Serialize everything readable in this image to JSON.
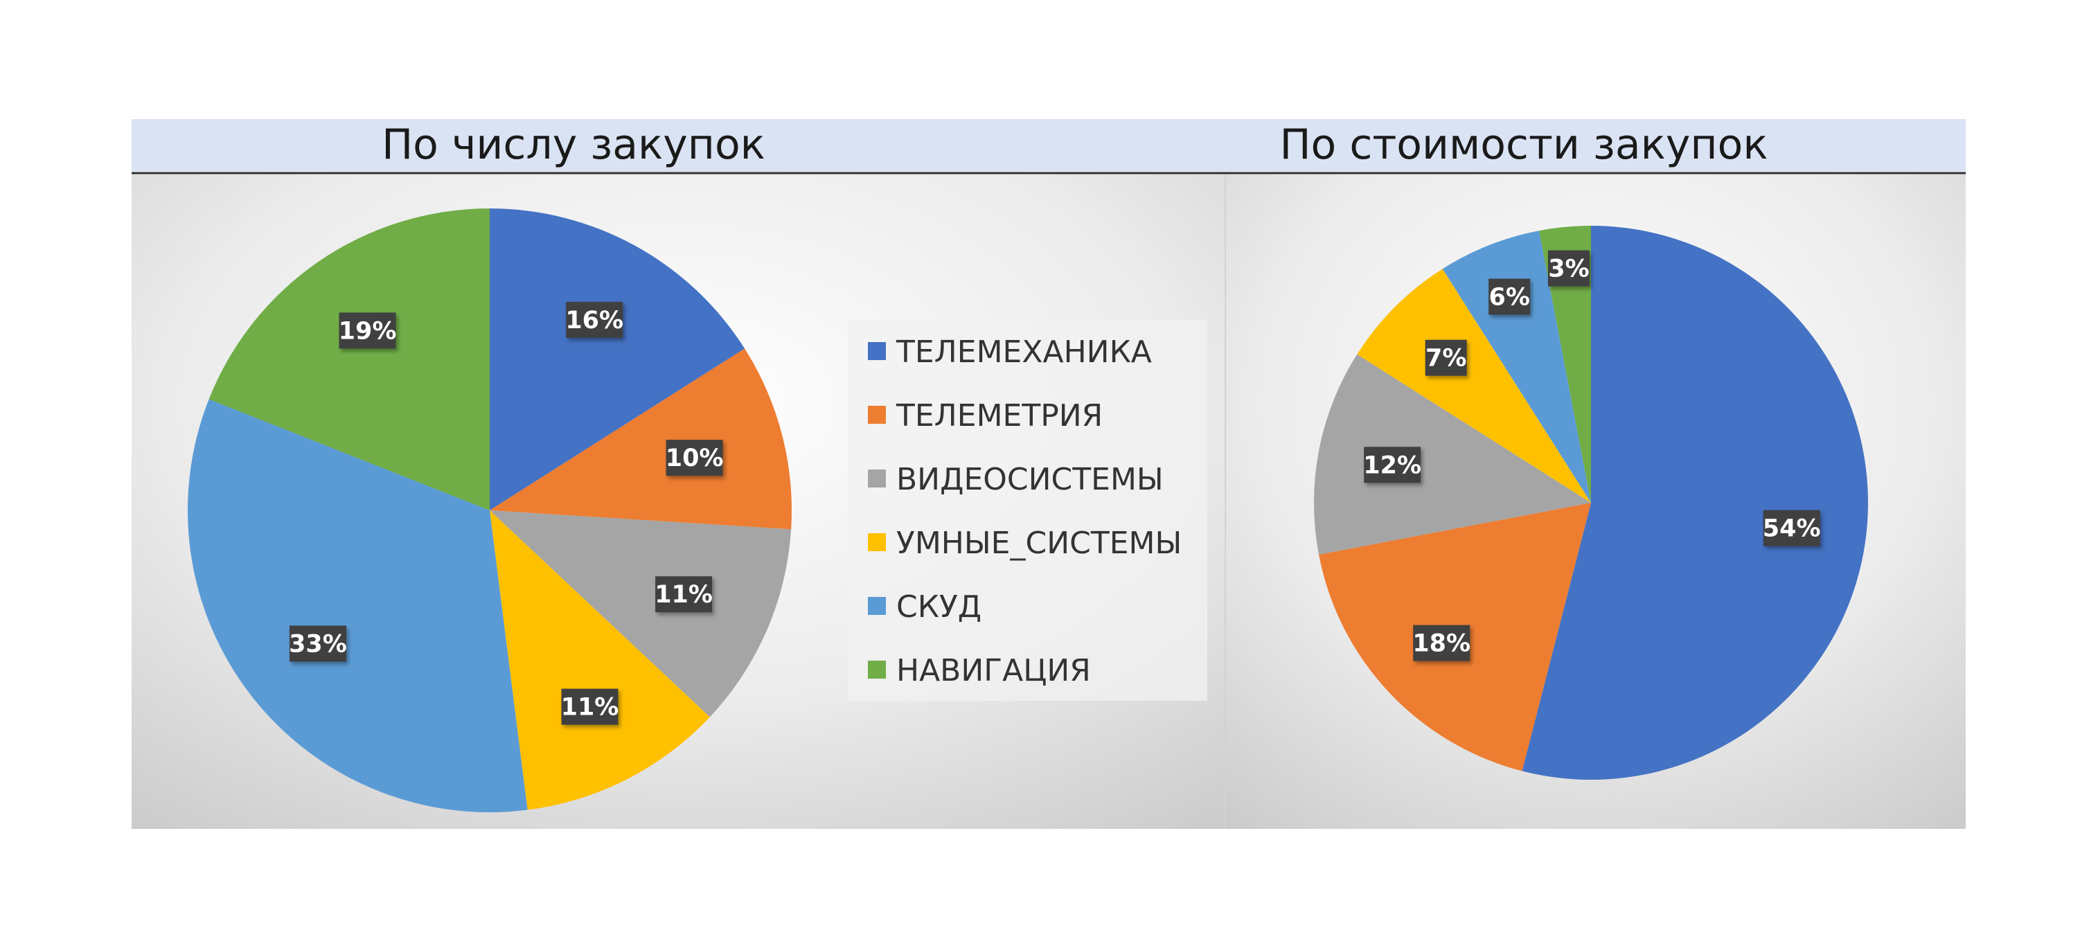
{
  "colors": {
    "header_band": "#dae3f3",
    "header_line": "#2f2f2f",
    "label_box": "#404040"
  },
  "legend": {
    "items": [
      {
        "label": "ТЕЛЕМЕХАНИКА",
        "color": "#4472c4"
      },
      {
        "label": "ТЕЛЕМЕТРИЯ",
        "color": "#ed7d31"
      },
      {
        "label": "ВИДЕОСИСТЕМЫ",
        "color": "#a5a5a5"
      },
      {
        "label": "УМНЫЕ_СИСТЕМЫ",
        "color": "#ffc000"
      },
      {
        "label": "СКУД",
        "color": "#5b9bd5"
      },
      {
        "label": "НАВИГАЦИЯ",
        "color": "#70ad47"
      }
    ]
  },
  "chart_data": [
    {
      "type": "pie",
      "title": "По числу закупок",
      "categories": [
        "ТЕЛЕМЕХАНИКА",
        "ТЕЛЕМЕТРИЯ",
        "ВИДЕОСИСТЕМЫ",
        "УМНЫЕ_СИСТЕМЫ",
        "СКУД",
        "НАВИГАЦИЯ"
      ],
      "values": [
        16,
        10,
        11,
        11,
        33,
        19
      ],
      "data_labels": [
        "16%",
        "10%",
        "11%",
        "11%",
        "33%",
        "19%"
      ],
      "legend": "right"
    },
    {
      "type": "pie",
      "title": "По стоимости закупок",
      "categories": [
        "ТЕЛЕМЕХАНИКА",
        "ТЕЛЕМЕТРИЯ",
        "ВИДЕОСИСТЕМЫ",
        "УМНЫЕ_СИСТЕМЫ",
        "СКУД",
        "НАВИГАЦИЯ"
      ],
      "values": [
        54,
        18,
        12,
        7,
        6,
        3
      ],
      "data_labels": [
        "54%",
        "18%",
        "12%",
        "7%",
        "6%",
        "3%"
      ],
      "legend": "none"
    }
  ]
}
